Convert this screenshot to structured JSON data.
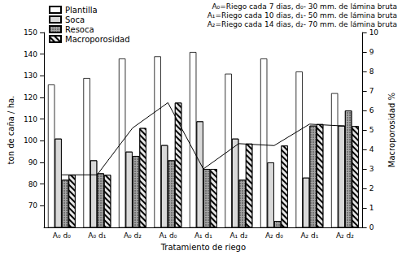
{
  "chart_data": {
    "type": "bar",
    "xlabel": "Tratamiento de riego",
    "ylabel": "ton de caña / ha.",
    "y2label": "Macroporosidad %",
    "annotations": [
      "A₀=Riego cada 7 dias, d₀- 30 mm. de lámina bruta",
      "A₁=Riego cada 10 dias, d₁- 50 mm. de lámina bruta",
      "A₂=Riego cada 14 dias, d₂- 70 mm. de lámina bruta"
    ],
    "categories": [
      "A₀ d₀",
      "A₀ d₁",
      "A₀ d₂",
      "A₁ d₀",
      "A₁ d₁",
      "A₁ d₂",
      "A₂ d₀",
      "A₂ d₁",
      "A₂ d₂"
    ],
    "series": [
      {
        "name": "Plantilla",
        "color": "#ffffff",
        "type": "bar",
        "values": [
          126,
          129,
          138,
          139,
          141,
          131,
          138,
          132,
          122
        ]
      },
      {
        "name": "Soca",
        "color": "#d9d9d9",
        "type": "bar",
        "values": [
          101,
          91,
          95,
          98,
          109,
          101,
          90,
          83,
          107
        ]
      },
      {
        "name": "Resoca",
        "color": "#a6a6a6",
        "type": "bar",
        "values": [
          82,
          85,
          93,
          91,
          87,
          82,
          63,
          107,
          114
        ]
      },
      {
        "name": "Macroporosidad",
        "color": "#e6e6e6",
        "type": "bar",
        "axis": "y2",
        "line_style": "solid",
        "values": [
          2.7,
          2.7,
          5.1,
          6.4,
          3.0,
          4.3,
          4.2,
          5.3,
          5.2
        ]
      }
    ],
    "ylim": [
      60,
      150
    ],
    "yticks": [
      70,
      80,
      90,
      100,
      110,
      120,
      130,
      140,
      150
    ],
    "y2lim": [
      0,
      10
    ],
    "y2ticks": [
      0,
      1,
      2,
      3,
      4,
      5,
      6,
      7,
      8,
      9,
      10
    ],
    "grid": false,
    "legend": "top-left"
  }
}
